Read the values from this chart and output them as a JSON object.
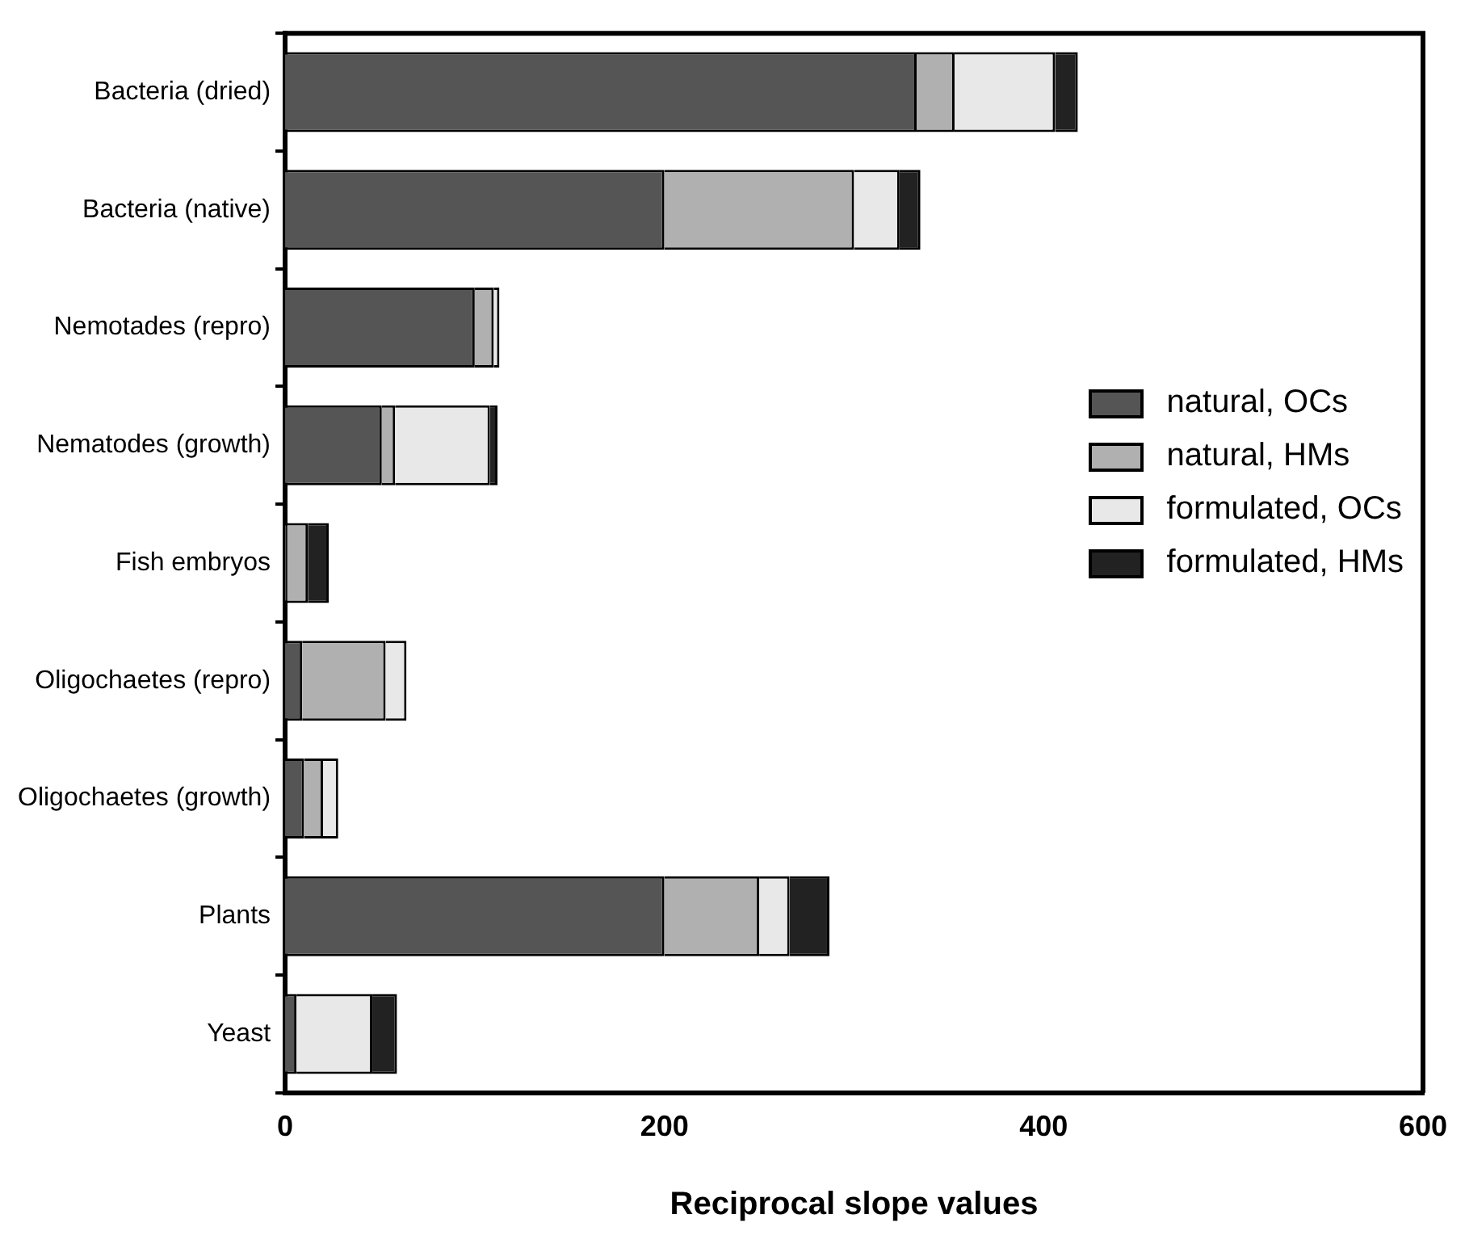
{
  "chart_data": {
    "type": "bar",
    "orientation": "horizontal",
    "stacked": true,
    "xlabel": "Reciprocal slope values",
    "categories": [
      "Bacteria (dried)",
      "Bacteria (native)",
      "Nemotades (repro)",
      "Nematodes (growth)",
      "Fish embryos",
      "Oligochaetes (repro)",
      "Oligochaetes (growth)",
      "Plants",
      "Yeast"
    ],
    "series": [
      {
        "name": "natural, OCs",
        "color": "#555555",
        "values": [
          333,
          200,
          100,
          51,
          1,
          9,
          10,
          200,
          6
        ]
      },
      {
        "name": "natural, HMs",
        "color": "#b0b0b0",
        "values": [
          20,
          100,
          10,
          7,
          11,
          44,
          10,
          50,
          null
        ]
      },
      {
        "name": "formulated, OCs",
        "color": "#e8e8e8",
        "values": [
          53,
          24,
          3,
          50,
          null,
          11,
          8,
          16,
          40
        ]
      },
      {
        "name": "formulated, HMs",
        "color": "#222222",
        "values": [
          12,
          11,
          null,
          4,
          11,
          null,
          null,
          21,
          13
        ]
      }
    ],
    "xlim": [
      0,
      600
    ],
    "xticks": [
      0,
      200,
      400,
      600
    ],
    "legend": "right",
    "grid": false
  }
}
